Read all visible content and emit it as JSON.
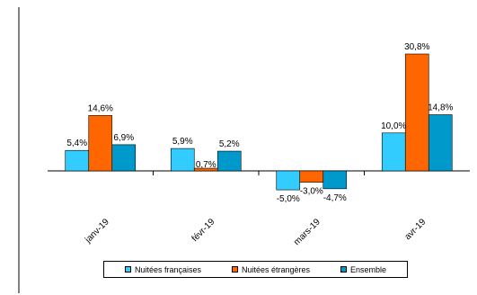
{
  "chart_data": {
    "type": "bar",
    "categories": [
      "janv-19",
      "févr-19",
      "mars-19",
      "avr-19"
    ],
    "series": [
      {
        "name": "Nuitées françaises",
        "values": [
          5.4,
          5.9,
          -5.0,
          10.0
        ],
        "labels": [
          "5,4%",
          "5,9%",
          "-5,0%",
          "10,0%"
        ],
        "color": "#33CCFF"
      },
      {
        "name": "Nuitées étrangères",
        "values": [
          14.6,
          0.7,
          -3.0,
          30.8
        ],
        "labels": [
          "14,6%",
          "0,7%",
          "-3,0%",
          "30,8%"
        ],
        "color": "#FF6600"
      },
      {
        "name": "Ensemble",
        "values": [
          6.9,
          5.2,
          -4.7,
          14.8
        ],
        "labels": [
          "6,9%",
          "5,2%",
          "-4,7%",
          "14,8%"
        ],
        "color": "#0099CC"
      }
    ],
    "ylim": [
      -10,
      35
    ],
    "grid": false,
    "legend_position": "bottom"
  }
}
